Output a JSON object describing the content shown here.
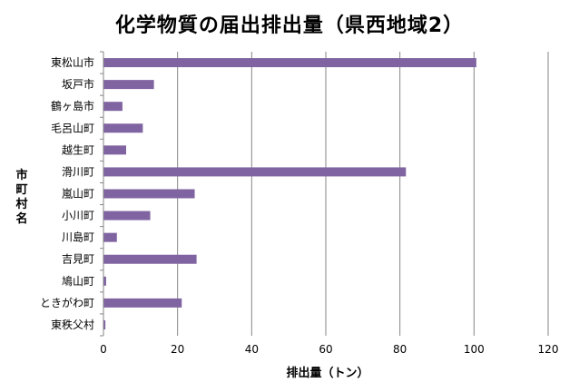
{
  "chart_data": {
    "type": "bar",
    "orientation": "horizontal",
    "title": "化学物質の届出排出量（県西地域2）",
    "xlabel": "排出量（トン）",
    "ylabel": "市町村名",
    "categories": [
      "東松山市",
      "坂戸市",
      "鶴ヶ島市",
      "毛呂山町",
      "越生町",
      "滑川町",
      "嵐山町",
      "小川町",
      "川島町",
      "吉見町",
      "鳩山町",
      "ときがわ町",
      "東秩父村"
    ],
    "values": [
      100.5,
      13.5,
      5,
      10.5,
      6,
      81.5,
      24.5,
      12.5,
      3.5,
      25,
      0.6,
      21,
      0.4
    ],
    "xlim": [
      0,
      120
    ],
    "xticks": [
      0,
      20,
      40,
      60,
      80,
      100,
      120
    ],
    "grid": true,
    "bar_color": "#8064a2"
  }
}
